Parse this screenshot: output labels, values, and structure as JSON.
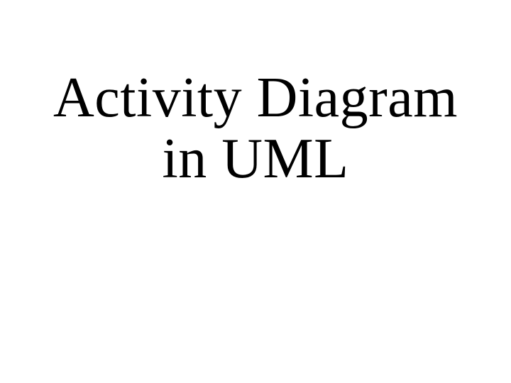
{
  "slide": {
    "title_line1": "Activity Diagram",
    "title_line2": "in UML",
    "background_color": "#ffffff",
    "text_color": "#000000",
    "font_family": "Times New Roman",
    "font_size": 80,
    "font_weight": 400
  }
}
